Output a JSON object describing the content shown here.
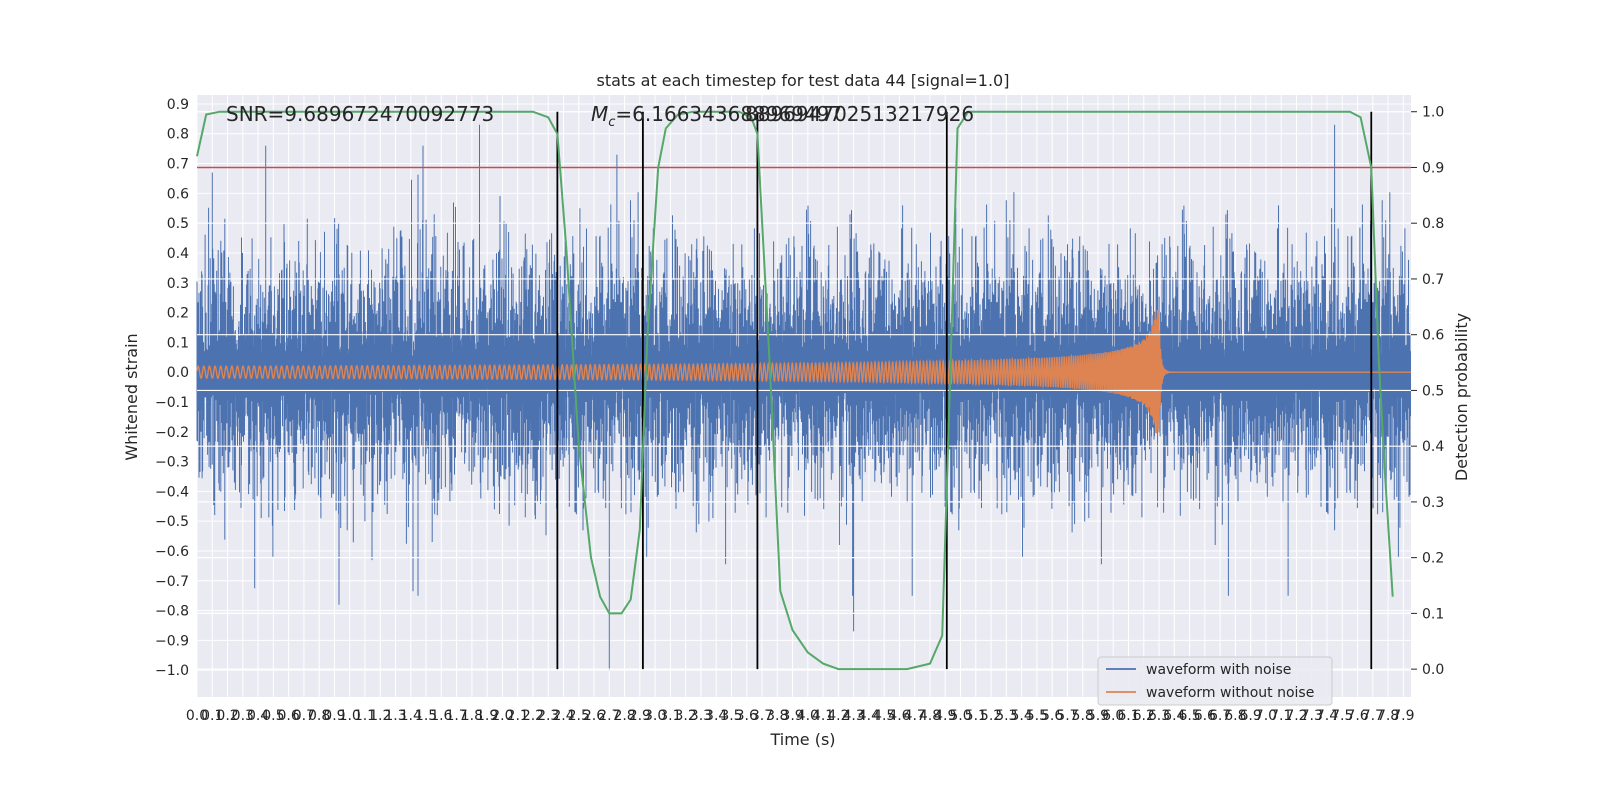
{
  "chart_data": {
    "type": "line",
    "title": "stats at each timestep for test data 44 [signal=1.0]",
    "xlabel": "Time (s)",
    "ylabel_left": "Whitened strain",
    "ylabel_right": "Detection probability",
    "annotations": {
      "snr": "SNR=9.689672470092773",
      "mc_label": "M",
      "mc_subscript": "c",
      "mc_text": "=6.166343688969497",
      "mc_overlap": "889694702513217926"
    },
    "xlim": [
      0.0,
      7.95
    ],
    "ylim_left": [
      -1.09,
      0.93
    ],
    "ylim_right": [
      -0.05,
      1.03
    ],
    "grid": true,
    "legend": {
      "position": "bottom-right"
    },
    "x_ticks": [
      "0.0",
      "0.1",
      "0.2",
      "0.3",
      "0.4",
      "0.5",
      "0.6",
      "0.7",
      "0.8",
      "0.9",
      "1.0",
      "1.1",
      "1.2",
      "1.3",
      "1.4",
      "1.5",
      "1.6",
      "1.7",
      "1.8",
      "1.9",
      "2.0",
      "2.1",
      "2.2",
      "2.3",
      "2.4",
      "2.5",
      "2.6",
      "2.7",
      "2.8",
      "2.9",
      "3.0",
      "3.1",
      "3.2",
      "3.3",
      "3.4",
      "3.5",
      "3.6",
      "3.7",
      "3.8",
      "3.9",
      "4.0",
      "4.1",
      "4.2",
      "4.3",
      "4.4",
      "4.5",
      "4.6",
      "4.7",
      "4.8",
      "4.9",
      "5.0",
      "5.1",
      "5.2",
      "5.3",
      "5.4",
      "5.5",
      "5.6",
      "5.7",
      "5.8",
      "5.9",
      "6.0",
      "6.1",
      "6.2",
      "6.3",
      "6.4",
      "6.5",
      "6.6",
      "6.7",
      "6.8",
      "6.9",
      "7.0",
      "7.1",
      "7.2",
      "7.3",
      "7.4",
      "7.5",
      "7.6",
      "7.7",
      "7.8",
      "7.9"
    ],
    "y_ticks_left": [
      "0.9",
      "0.8",
      "0.7",
      "0.6",
      "0.5",
      "0.4",
      "0.3",
      "0.2",
      "0.1",
      "0.0",
      "−0.1",
      "−0.2",
      "−0.3",
      "−0.4",
      "−0.5",
      "−0.6",
      "−0.7",
      "−0.8",
      "−0.9",
      "−1.0"
    ],
    "y_ticks_right": [
      "1.0",
      "0.9",
      "0.8",
      "0.7",
      "0.6",
      "0.5",
      "0.4",
      "0.3",
      "0.2",
      "0.1",
      "0.0"
    ],
    "threshold": 0.9,
    "event_lines_x": [
      2.36,
      2.92,
      3.67,
      4.91,
      7.69
    ],
    "series": [
      {
        "name": "waveform with noise",
        "color": "#4c72b0",
        "axis": "left",
        "style": "dense-noise",
        "typical_amplitude": 0.3,
        "peak_positive": 0.83,
        "peak_negative": -1.0,
        "peaks": [
          {
            "x": 0.1,
            "y": 0.67
          },
          {
            "x": 0.45,
            "y": 0.76
          },
          {
            "x": 0.93,
            "y": -0.78
          },
          {
            "x": 1.48,
            "y": 0.76
          },
          {
            "x": 1.85,
            "y": 0.83
          },
          {
            "x": 2.7,
            "y": -1.0
          },
          {
            "x": 2.75,
            "y": 0.73
          },
          {
            "x": 4.3,
            "y": -0.87
          },
          {
            "x": 7.45,
            "y": 0.83
          }
        ]
      },
      {
        "name": "waveform without noise",
        "color": "#dd8452",
        "axis": "left",
        "style": "chirp",
        "merger_time": 6.3,
        "start_amplitude": 0.02,
        "peak_amplitude": 0.21
      },
      {
        "name": "detection probability",
        "color": "#55a868",
        "axis": "right",
        "points": [
          {
            "x": 0.0,
            "y": 0.92
          },
          {
            "x": 0.06,
            "y": 0.995
          },
          {
            "x": 0.15,
            "y": 1.0
          },
          {
            "x": 2.2,
            "y": 1.0
          },
          {
            "x": 2.3,
            "y": 0.99
          },
          {
            "x": 2.36,
            "y": 0.96
          },
          {
            "x": 2.42,
            "y": 0.75
          },
          {
            "x": 2.5,
            "y": 0.4
          },
          {
            "x": 2.58,
            "y": 0.2
          },
          {
            "x": 2.64,
            "y": 0.13
          },
          {
            "x": 2.7,
            "y": 0.1
          },
          {
            "x": 2.78,
            "y": 0.1
          },
          {
            "x": 2.84,
            "y": 0.125
          },
          {
            "x": 2.9,
            "y": 0.25
          },
          {
            "x": 2.95,
            "y": 0.6
          },
          {
            "x": 3.02,
            "y": 0.9
          },
          {
            "x": 3.07,
            "y": 0.97
          },
          {
            "x": 3.15,
            "y": 0.995
          },
          {
            "x": 3.25,
            "y": 1.0
          },
          {
            "x": 3.55,
            "y": 1.0
          },
          {
            "x": 3.63,
            "y": 0.99
          },
          {
            "x": 3.67,
            "y": 0.96
          },
          {
            "x": 3.75,
            "y": 0.55
          },
          {
            "x": 3.82,
            "y": 0.14
          },
          {
            "x": 3.9,
            "y": 0.07
          },
          {
            "x": 4.0,
            "y": 0.03
          },
          {
            "x": 4.1,
            "y": 0.01
          },
          {
            "x": 4.2,
            "y": 0.0
          },
          {
            "x": 4.65,
            "y": 0.0
          },
          {
            "x": 4.8,
            "y": 0.01
          },
          {
            "x": 4.88,
            "y": 0.06
          },
          {
            "x": 4.93,
            "y": 0.5
          },
          {
            "x": 4.98,
            "y": 0.97
          },
          {
            "x": 5.05,
            "y": 1.0
          },
          {
            "x": 7.55,
            "y": 1.0
          },
          {
            "x": 7.62,
            "y": 0.99
          },
          {
            "x": 7.69,
            "y": 0.9
          },
          {
            "x": 7.74,
            "y": 0.55
          },
          {
            "x": 7.78,
            "y": 0.35
          },
          {
            "x": 7.83,
            "y": 0.13
          }
        ]
      },
      {
        "name": "threshold",
        "color": "#c44e52",
        "axis": "right",
        "value": 0.9
      }
    ]
  }
}
